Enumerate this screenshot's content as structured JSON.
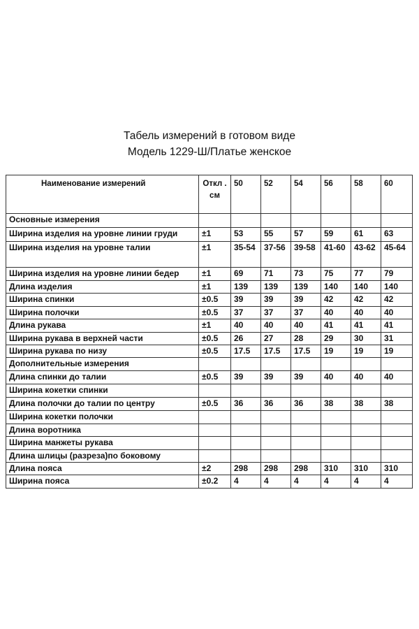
{
  "header": {
    "title": "Табель измерений в готовом виде",
    "subtitle": "Модель 1229-Ш/Платье женское"
  },
  "table": {
    "columns": [
      "Наименование измерений",
      "Откл . см",
      "50",
      "52",
      "54",
      "56",
      "58",
      "60"
    ],
    "rows": [
      [
        "Основные измерения",
        null,
        null,
        null,
        null,
        null,
        null,
        null
      ],
      [
        "Ширина изделия на уровне линии груди",
        "±1",
        "53",
        "55",
        "57",
        "59",
        "61",
        "63"
      ],
      [
        "Ширина изделия на уровне  талии",
        "±1",
        "35-54",
        "37-56",
        "39-58",
        "41-60",
        "43-62",
        "45-64"
      ],
      [
        "Ширина изделия на уровне линии бедер",
        "±1",
        "69",
        "71",
        "73",
        "75",
        "77",
        "79"
      ],
      [
        "Длина изделия",
        "±1",
        "139",
        "139",
        "139",
        "140",
        "140",
        "140"
      ],
      [
        "Ширина спинки",
        "±0.5",
        "39",
        "39",
        "39",
        "42",
        "42",
        "42"
      ],
      [
        "Ширина полочки",
        "±0.5",
        "37",
        "37",
        "37",
        "40",
        "40",
        "40"
      ],
      [
        "Длина рукава",
        "±1",
        "40",
        "40",
        "40",
        "41",
        "41",
        "41"
      ],
      [
        "Ширина рукава в верхней части",
        "±0.5",
        "26",
        "27",
        "28",
        "29",
        "30",
        "31"
      ],
      [
        "Ширина рукава по низу",
        "±0.5",
        "17.5",
        "17.5",
        "17.5",
        "19",
        "19",
        "19"
      ],
      [
        "Дополнительные измерения",
        null,
        null,
        null,
        null,
        null,
        null,
        null
      ],
      [
        "Длина спинки до талии",
        "±0.5",
        "39",
        "39",
        "39",
        "40",
        "40",
        "40"
      ],
      [
        "Ширина кокетки спинки",
        null,
        null,
        null,
        null,
        null,
        null,
        null
      ],
      [
        "Длина полочки до талии по центру",
        "±0.5",
        "36",
        "36",
        "36",
        "38",
        "38",
        "38"
      ],
      [
        "Ширина кокетки полочки",
        null,
        null,
        null,
        null,
        null,
        null,
        null
      ],
      [
        "Длина воротника",
        null,
        null,
        null,
        null,
        null,
        null,
        null
      ],
      [
        "Ширина манжеты рукава",
        null,
        null,
        null,
        null,
        null,
        null,
        null
      ],
      [
        "Длина шлицы (разреза)по боковому",
        null,
        null,
        null,
        null,
        null,
        null,
        null
      ],
      [
        "Длина пояса",
        "±2",
        "298",
        "298",
        "298",
        "310",
        "310",
        "310"
      ],
      [
        "Ширина пояса",
        "±0.2",
        "4",
        "4",
        "4",
        "4",
        "4",
        "4"
      ]
    ]
  }
}
